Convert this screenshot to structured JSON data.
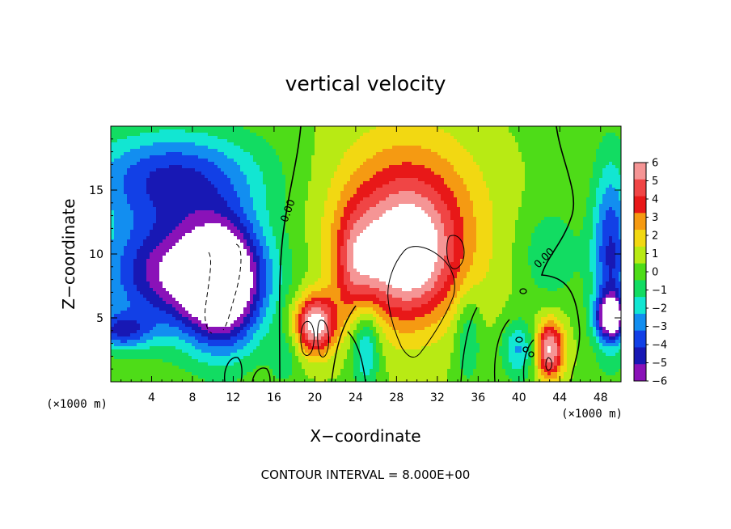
{
  "chart_data": {
    "type": "heatmap",
    "title": "vertical velocity",
    "xlabel": "X−coordinate",
    "ylabel": "Z−coordinate",
    "x_units": "(×1000 m)",
    "y_units": "(×1000 m)",
    "xlim": [
      0,
      50
    ],
    "ylim": [
      0,
      20
    ],
    "x_ticks": [
      4,
      8,
      12,
      16,
      20,
      24,
      28,
      32,
      36,
      40,
      44,
      48
    ],
    "y_ticks": [
      5,
      10,
      15
    ],
    "colorbar": {
      "ticks": [
        6,
        5,
        4,
        3,
        2,
        1,
        0,
        -1,
        -2,
        -3,
        -4,
        -5,
        -6
      ],
      "tick_labels": [
        "6",
        "5",
        "4",
        "3",
        "2",
        "1",
        "0",
        "−1",
        "−2",
        "−3",
        "−4",
        "−5",
        "−6"
      ],
      "colors": [
        "#f59595",
        "#f04545",
        "#e81818",
        "#f59a12",
        "#f2d812",
        "#b8ea14",
        "#4edc18",
        "#12dc62",
        "#12e6d2",
        "#128ef0",
        "#1240e6",
        "#1818b4",
        "#8a12b8"
      ]
    },
    "contour_labels": [
      "0.00",
      "0.00"
    ],
    "contour_interval_text": "CONTOUR INTERVAL = 8.000E+00",
    "field": {
      "background_value": 0.3,
      "features": [
        {
          "x": 6,
          "z": 16,
          "sx": 6,
          "sz": 2.6,
          "amp": -4.8
        },
        {
          "x": 7,
          "z": 8.5,
          "sx": 5.5,
          "sz": 3.2,
          "amp": -7
        },
        {
          "x": 11,
          "z": 7.5,
          "sx": 2.5,
          "sz": 3.5,
          "amp": -7
        },
        {
          "x": 1,
          "z": 4,
          "sx": 2,
          "sz": 1,
          "amp": -4
        },
        {
          "x": 29,
          "z": 12,
          "sx": 5,
          "sz": 5,
          "amp": 5
        },
        {
          "x": 29,
          "z": 9.5,
          "sx": 3,
          "sz": 3.2,
          "amp": 4
        },
        {
          "x": 20,
          "z": 4.5,
          "sx": 1.4,
          "sz": 1.6,
          "amp": 7
        },
        {
          "x": 24,
          "z": 9,
          "sx": 1.5,
          "sz": 3,
          "amp": 3
        },
        {
          "x": 25,
          "z": 3,
          "sx": 1,
          "sz": 2.5,
          "amp": -3.5
        },
        {
          "x": 35,
          "z": 3.5,
          "sx": 0.9,
          "sz": 2.5,
          "amp": -2.2
        },
        {
          "x": 43,
          "z": 2.5,
          "sx": 1,
          "sz": 1.6,
          "amp": 6.5
        },
        {
          "x": 40,
          "z": 2.5,
          "sx": 1.2,
          "sz": 1.6,
          "amp": -3
        },
        {
          "x": 49,
          "z": 10,
          "sx": 1.3,
          "sz": 5,
          "amp": -5
        },
        {
          "x": 49,
          "z": 5,
          "sx": 1,
          "sz": 1.2,
          "amp": -7
        },
        {
          "x": 43,
          "z": 10,
          "sx": 2,
          "sz": 2.5,
          "amp": -1.8
        },
        {
          "x": 17,
          "z": 2,
          "sx": 1,
          "sz": 1.5,
          "amp": -1.5
        }
      ]
    }
  }
}
